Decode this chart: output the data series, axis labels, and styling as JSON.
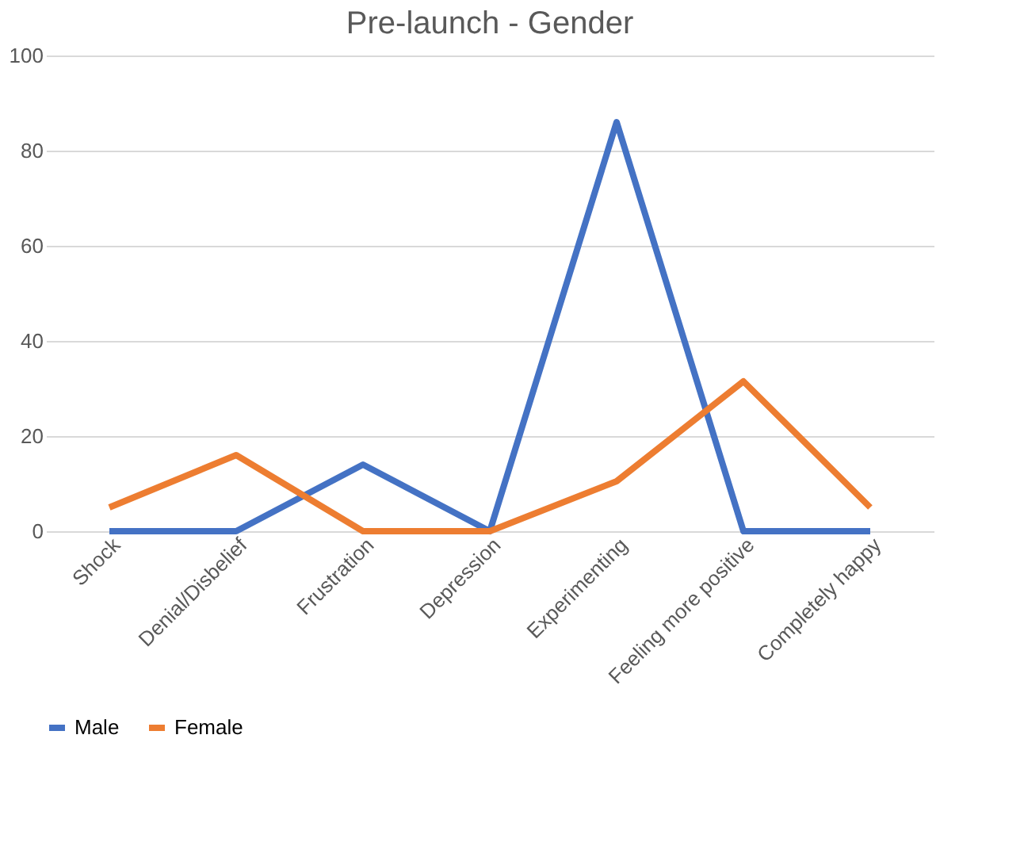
{
  "chart_data": {
    "type": "line",
    "title": "Pre-launch - Gender",
    "categories": [
      "Shock",
      "Denial/Disbelief",
      "Frustration",
      "Depression",
      "Experimenting",
      "Feeling more positive",
      "Completely happy"
    ],
    "series": [
      {
        "name": "Male",
        "color": "#4472c4",
        "values": [
          0,
          0,
          14,
          0,
          86,
          0,
          0
        ]
      },
      {
        "name": "Female",
        "color": "#ed7d31",
        "values": [
          5,
          16,
          0,
          0,
          10.5,
          31.5,
          5
        ]
      }
    ],
    "ylim": [
      0,
      100
    ],
    "yticks": [
      0,
      20,
      40,
      60,
      80,
      100
    ],
    "grid": "y",
    "legend": "bottom",
    "marker": "none",
    "line_style": "solid"
  }
}
